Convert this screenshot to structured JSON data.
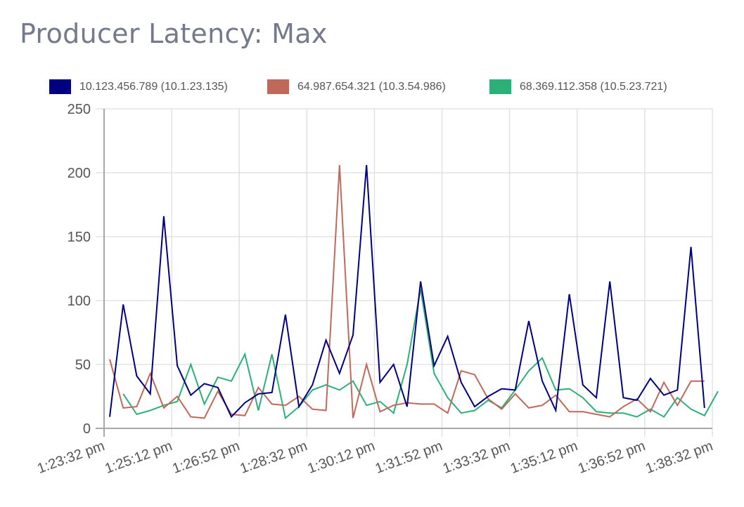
{
  "title": "Producer Latency: Max",
  "chart_data": {
    "type": "line",
    "title": "Producer Latency: Max",
    "xlabel": "",
    "ylabel": "",
    "ylim": [
      0,
      250
    ],
    "yticks": [
      0,
      50,
      100,
      150,
      200,
      250
    ],
    "xtick_labels": [
      "1:23:32 pm",
      "1:25:12 pm",
      "1:26:52 pm",
      "1:28:32 pm",
      "1:30:12 pm",
      "1:31:52 pm",
      "1:33:32 pm",
      "1:35:12 pm",
      "1:36:52 pm",
      "1:38:32 pm"
    ],
    "grid": true,
    "legend_position": "top",
    "series": [
      {
        "name": "10.123.456.789 (10.1.23.135)",
        "color": "#000080",
        "values": [
          9,
          97,
          41,
          27,
          166,
          49,
          26,
          35,
          32,
          9,
          20,
          27,
          28,
          89,
          17,
          34,
          69,
          43,
          73,
          206,
          36,
          50,
          17,
          115,
          49,
          72,
          36,
          17,
          25,
          31,
          30,
          84,
          37,
          14,
          105,
          34,
          24,
          115,
          24,
          22,
          39,
          26,
          30,
          142,
          16
        ]
      },
      {
        "name": "64.987.654.321 (10.3.54.986)",
        "color": "#c0695a",
        "values": [
          54,
          16,
          17,
          43,
          16,
          25,
          9,
          8,
          29,
          11,
          10,
          32,
          19,
          18,
          25,
          15,
          14,
          206,
          8,
          50,
          13,
          18,
          20,
          19,
          19,
          12,
          45,
          42,
          23,
          15,
          27,
          16,
          18,
          26,
          13,
          13,
          11,
          9,
          17,
          23,
          13,
          36,
          18,
          37,
          37
        ]
      },
      {
        "name": "68.369.112.358 (10.5.23.721)",
        "color": "#2bb178",
        "values": [
          null,
          27,
          11,
          14,
          18,
          21,
          50,
          19,
          40,
          37,
          58,
          14,
          58,
          8,
          17,
          30,
          34,
          30,
          37,
          18,
          21,
          12,
          50,
          109,
          43,
          24,
          12,
          14,
          22,
          16,
          30,
          45,
          55,
          30,
          31,
          24,
          13,
          12,
          12,
          9,
          15,
          9,
          24,
          15,
          10,
          29
        ]
      }
    ],
    "x_start_seconds": 0,
    "x_step_seconds": 20
  },
  "legend": [
    {
      "label": "10.123.456.789 (10.1.23.135)",
      "color": "#000080"
    },
    {
      "label": "64.987.654.321 (10.3.54.986)",
      "color": "#c0695a"
    },
    {
      "label": "68.369.112.358 (10.5.23.721)",
      "color": "#2bb178"
    }
  ]
}
